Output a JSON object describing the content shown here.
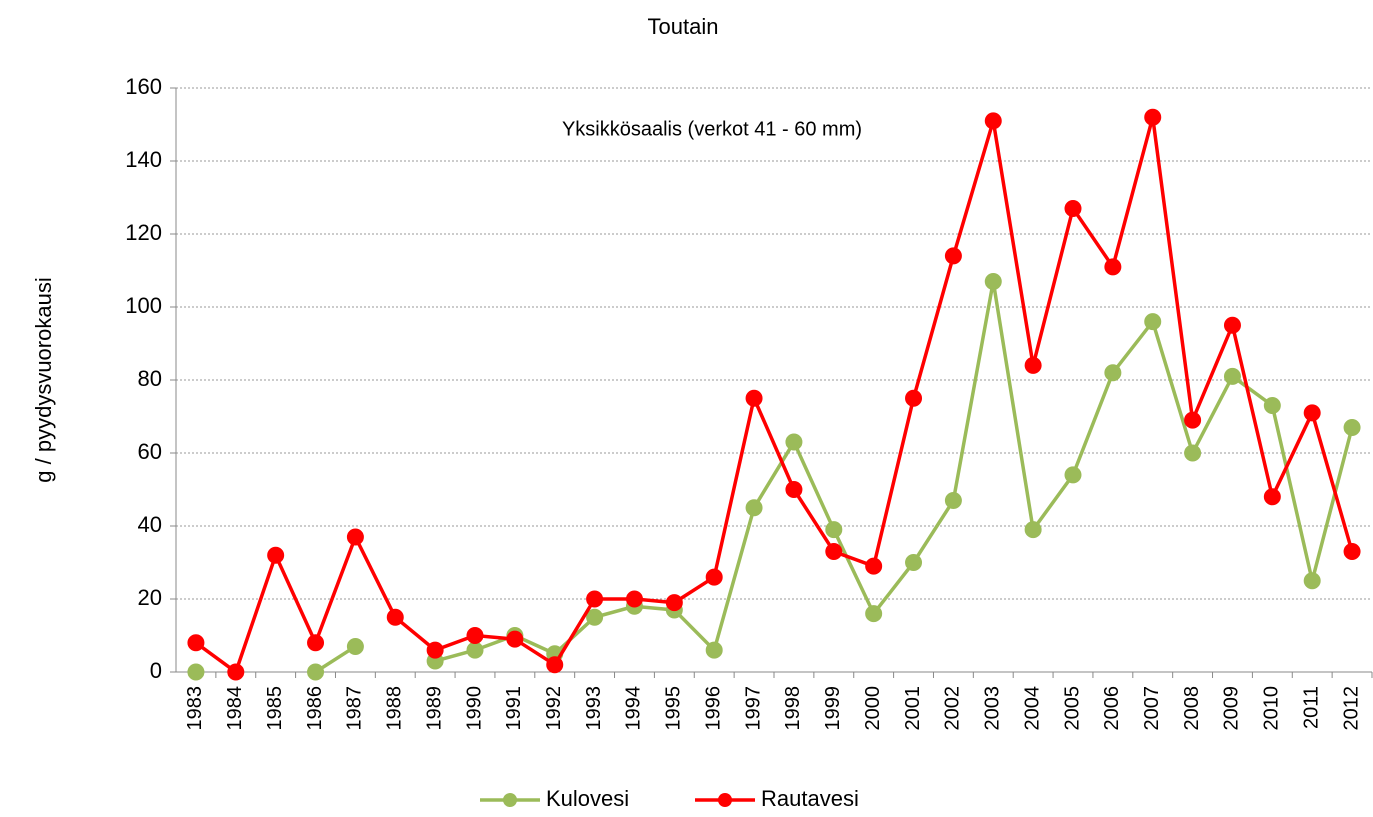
{
  "chart_data": {
    "type": "line",
    "title": "Toutain",
    "annotation": "Yksikkösaalis (verkot 41 - 60 mm)",
    "y_label": "g / pyydysvuorokausi",
    "categories": [
      "1983",
      "1984",
      "1985",
      "1986",
      "1987",
      "1988",
      "1989",
      "1990",
      "1991",
      "1992",
      "1993",
      "1994",
      "1995",
      "1996",
      "1997",
      "1998",
      "1999",
      "2000",
      "2001",
      "2002",
      "2003",
      "2004",
      "2005",
      "2006",
      "2007",
      "2008",
      "2009",
      "2010",
      "2011",
      "2012"
    ],
    "series": [
      {
        "name": "Kulovesi",
        "color": "#9bbb59",
        "values": [
          0,
          null,
          null,
          0,
          7,
          null,
          3,
          6,
          10,
          5,
          15,
          18,
          17,
          6,
          45,
          63,
          39,
          16,
          30,
          47,
          107,
          39,
          54,
          82,
          96,
          60,
          81,
          73,
          25,
          67
        ]
      },
      {
        "name": "Rautavesi",
        "color": "#ff0000",
        "values": [
          8,
          0,
          32,
          8,
          37,
          15,
          6,
          10,
          9,
          2,
          20,
          20,
          19,
          26,
          75,
          50,
          33,
          29,
          75,
          114,
          151,
          84,
          127,
          111,
          152,
          69,
          95,
          48,
          71,
          33
        ]
      }
    ],
    "ylim": [
      0,
      160
    ],
    "yticks": [
      0,
      20,
      40,
      60,
      80,
      100,
      120,
      140,
      160
    ],
    "grid": true,
    "legend": "bottom"
  }
}
